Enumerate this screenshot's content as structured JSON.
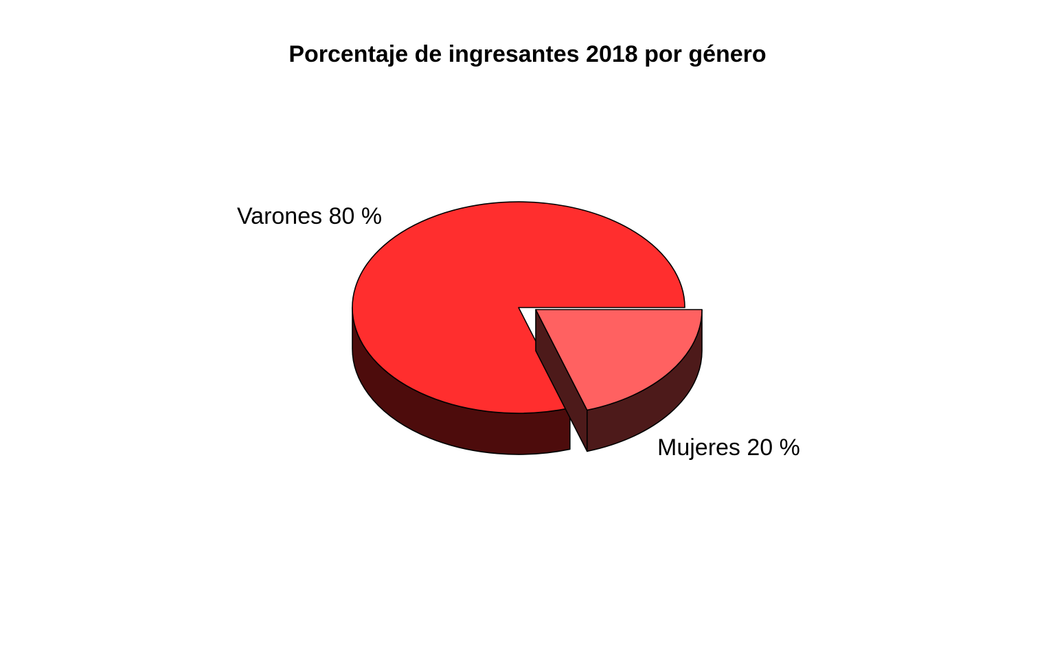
{
  "chart_data": {
    "type": "pie",
    "title": "Porcentaje de ingresantes 2018 por género",
    "style": "3d-exploded",
    "slices": [
      {
        "label": "Varones 80 %",
        "category": "Varones",
        "value": 80,
        "color": "#ff2e2e",
        "side_color": "#4d0c0c",
        "exploded": false
      },
      {
        "label": "Mujeres 20 %",
        "category": "Mujeres",
        "value": 20,
        "color": "#ff6161",
        "side_color": "#4d1a1a",
        "exploded": true
      }
    ]
  }
}
